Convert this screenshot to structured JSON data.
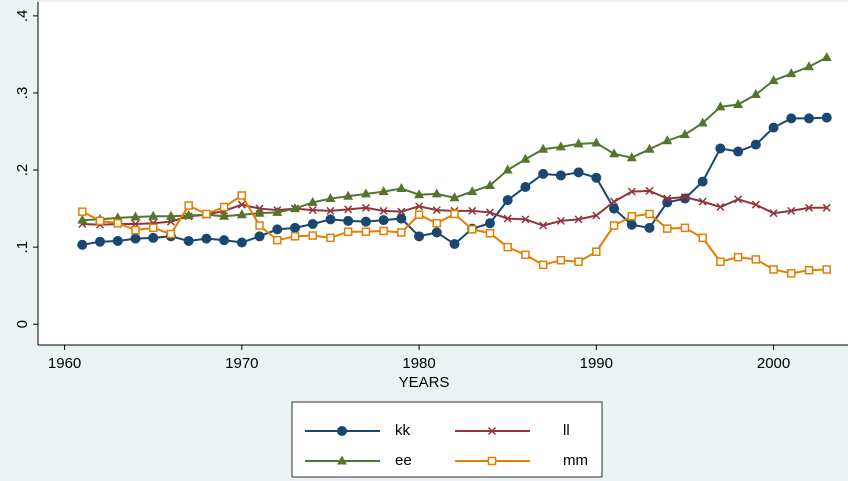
{
  "chart_data": {
    "type": "line",
    "x_label": "YEARS",
    "x": [
      1961,
      1962,
      1963,
      1964,
      1965,
      1966,
      1967,
      1968,
      1969,
      1970,
      1971,
      1972,
      1973,
      1974,
      1975,
      1976,
      1977,
      1978,
      1979,
      1980,
      1981,
      1982,
      1983,
      1984,
      1985,
      1986,
      1987,
      1988,
      1989,
      1990,
      1991,
      1992,
      1993,
      1994,
      1995,
      1996,
      1997,
      1998,
      1999,
      2000,
      2001,
      2002,
      2003
    ],
    "xlim": [
      1958.5,
      2004.2
    ],
    "xticks": [
      1960,
      1970,
      1980,
      1990,
      2000
    ],
    "ylim": [
      -0.027,
      0.418
    ],
    "yticks": [
      0,
      {
        "value": 0.1,
        "label": ".1"
      },
      {
        "value": 0.2,
        "label": ".2"
      },
      {
        "value": 0.3,
        "label": ".3"
      },
      {
        "value": 0.4,
        "label": ".4"
      }
    ],
    "grid": false,
    "legend_position": "bottom",
    "series": [
      {
        "name": "kk",
        "color": "#1a476f",
        "marker": "circle",
        "values": [
          0.103,
          0.107,
          0.108,
          0.111,
          0.112,
          0.114,
          0.108,
          0.111,
          0.109,
          0.106,
          0.114,
          0.123,
          0.125,
          0.13,
          0.136,
          0.134,
          0.133,
          0.135,
          0.137,
          0.114,
          0.119,
          0.104,
          0.124,
          0.131,
          0.161,
          0.178,
          0.195,
          0.193,
          0.197,
          0.19,
          0.15,
          0.129,
          0.125,
          0.158,
          0.163,
          0.185,
          0.228,
          0.224,
          0.233,
          0.255,
          0.267,
          0.267,
          0.268
        ]
      },
      {
        "name": "ll",
        "color": "#90353b",
        "marker": "x",
        "values": [
          0.13,
          0.129,
          0.13,
          0.13,
          0.131,
          0.133,
          0.14,
          0.142,
          0.147,
          0.155,
          0.15,
          0.148,
          0.15,
          0.148,
          0.147,
          0.149,
          0.151,
          0.147,
          0.146,
          0.153,
          0.148,
          0.147,
          0.147,
          0.145,
          0.137,
          0.136,
          0.128,
          0.134,
          0.136,
          0.141,
          0.159,
          0.172,
          0.173,
          0.163,
          0.165,
          0.159,
          0.152,
          0.162,
          0.155,
          0.144,
          0.147,
          0.151,
          0.151
        ]
      },
      {
        "name": "ee",
        "color": "#55752f",
        "marker": "triangle",
        "values": [
          0.135,
          0.136,
          0.138,
          0.139,
          0.14,
          0.14,
          0.141,
          0.142,
          0.14,
          0.142,
          0.144,
          0.145,
          0.15,
          0.158,
          0.163,
          0.166,
          0.169,
          0.172,
          0.176,
          0.168,
          0.169,
          0.164,
          0.172,
          0.18,
          0.2,
          0.214,
          0.227,
          0.23,
          0.234,
          0.235,
          0.221,
          0.216,
          0.227,
          0.238,
          0.246,
          0.261,
          0.282,
          0.285,
          0.298,
          0.316,
          0.325,
          0.334,
          0.346
        ]
      },
      {
        "name": "mm",
        "color": "#e37e00",
        "marker": "square",
        "values": [
          0.146,
          0.134,
          0.131,
          0.122,
          0.125,
          0.117,
          0.154,
          0.143,
          0.152,
          0.167,
          0.128,
          0.109,
          0.114,
          0.115,
          0.112,
          0.12,
          0.12,
          0.121,
          0.119,
          0.142,
          0.131,
          0.143,
          0.123,
          0.118,
          0.1,
          0.09,
          0.077,
          0.083,
          0.081,
          0.094,
          0.128,
          0.14,
          0.143,
          0.124,
          0.125,
          0.112,
          0.081,
          0.087,
          0.084,
          0.071,
          0.066,
          0.07,
          0.071
        ]
      }
    ]
  }
}
